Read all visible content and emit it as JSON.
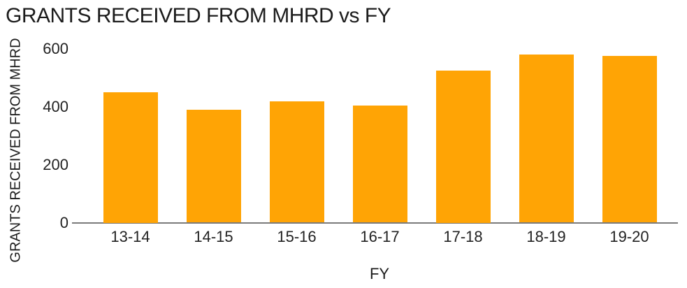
{
  "title": "GRANTS RECEIVED FROM MHRD vs FY",
  "colors": {
    "bar": "#FFA405",
    "axis_line": "#7a7a7a",
    "title_text": "#1c1c1c",
    "tick_text": "#222222",
    "background": "#ffffff"
  },
  "chart_data": {
    "type": "bar",
    "title": "GRANTS RECEIVED FROM MHRD vs FY",
    "xlabel": "FY",
    "ylabel": "GRANTS RECEIVED FROM MHRD",
    "categories": [
      "13-14",
      "14-15",
      "15-16",
      "16-17",
      "17-18",
      "18-19",
      "19-20"
    ],
    "values": [
      450,
      390,
      420,
      405,
      525,
      580,
      575
    ],
    "ylim": [
      0,
      600
    ],
    "yticks": [
      0,
      200,
      400,
      600
    ],
    "grid": false,
    "legend": false,
    "bar_color": "#FFA405"
  }
}
